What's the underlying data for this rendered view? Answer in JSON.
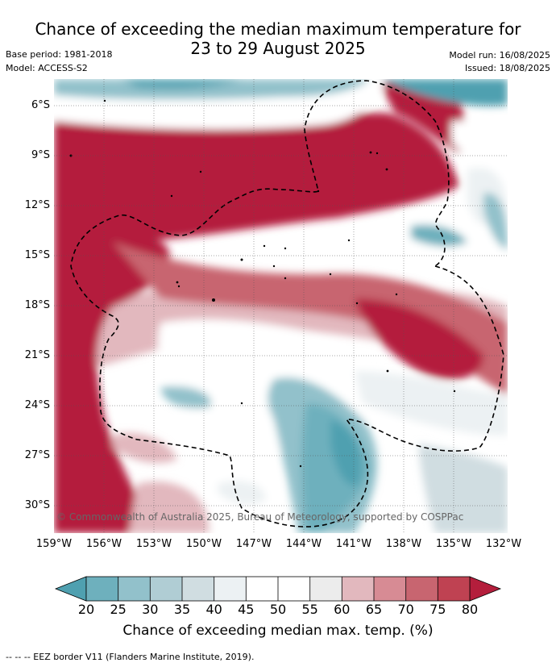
{
  "title_line1": "Chance of exceeding the median maximum temperature for",
  "title_line2": "23 to 29 August 2025",
  "base_period": "Base period: 1981-2018",
  "model": "Model: ACCESS-S2",
  "model_run": "Model run: 16/08/2025",
  "issued": "Issued: 18/08/2025",
  "lat_labels": [
    "6°S",
    "9°S",
    "12°S",
    "15°S",
    "18°S",
    "21°S",
    "24°S",
    "27°S",
    "30°S"
  ],
  "lon_labels": [
    "159°W",
    "156°W",
    "153°W",
    "150°W",
    "147°W",
    "144°W",
    "141°W",
    "138°W",
    "135°W",
    "132°W"
  ],
  "colorbar": {
    "labels": [
      "20",
      "25",
      "30",
      "35",
      "40",
      "45",
      "50",
      "55",
      "60",
      "65",
      "70",
      "75",
      "80"
    ],
    "colors": [
      "#4fa0b0",
      "#6eb0bd",
      "#92c1cb",
      "#b0cdd4",
      "#d0dde1",
      "#ecf1f3",
      "#ffffff",
      "#ffffff",
      "#ececec",
      "#e2b8be",
      "#d78b94",
      "#c86570",
      "#bf4252",
      "#b41e3c"
    ],
    "title": "Chance of exceeding median max. temp. (%)"
  },
  "copyright": "© Commonwealth of Australia 2025, Bureau of Meteorology, supported by COSPPac",
  "footer": "-- -- -- EEZ border V11 (Flanders Marine Institute, 2019)."
}
